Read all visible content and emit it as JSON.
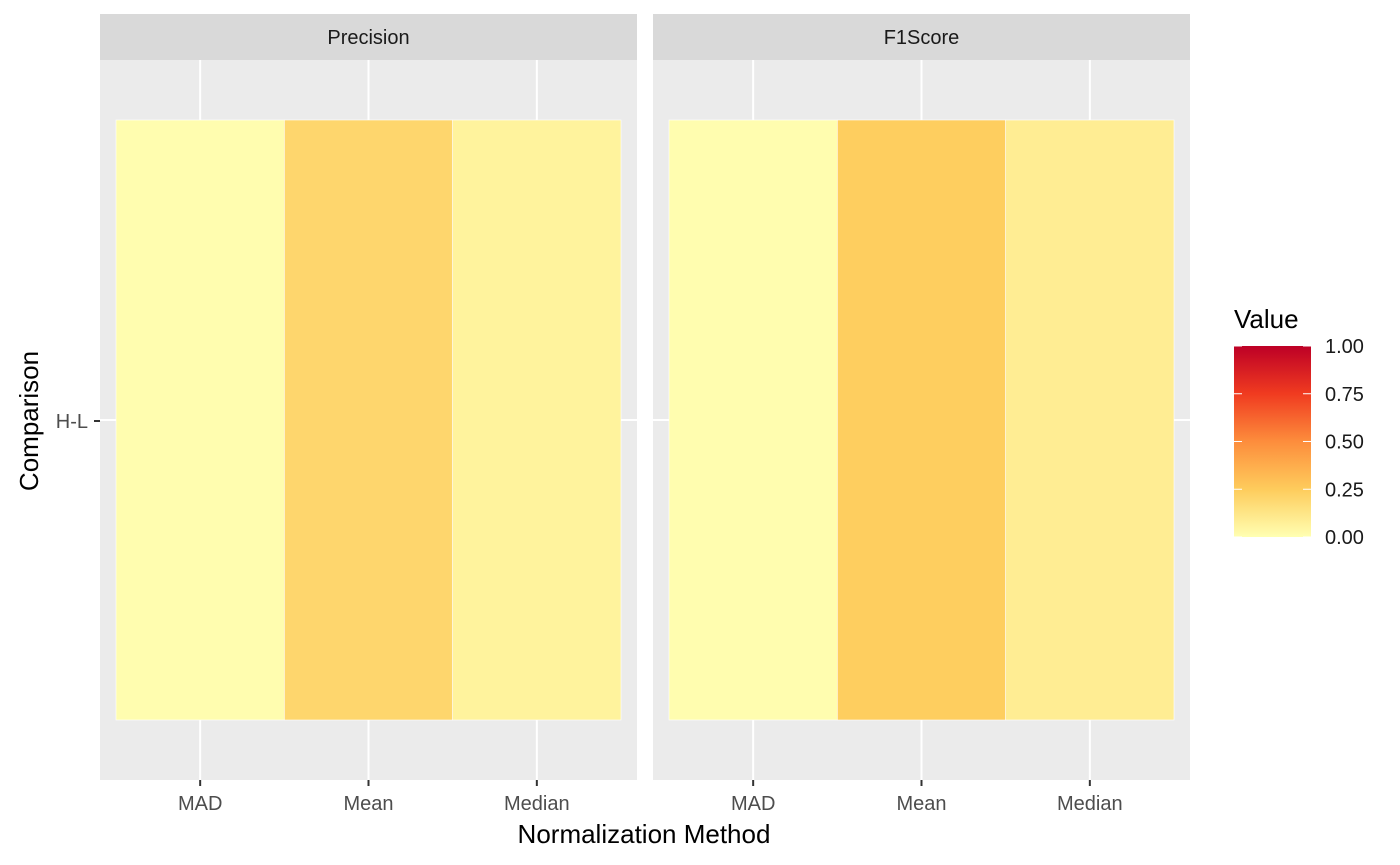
{
  "chart_data": {
    "type": "heatmap",
    "xlabel": "Normalization Method",
    "ylabel": "Comparison",
    "x_categories": [
      "MAD",
      "Mean",
      "Median"
    ],
    "y_categories": [
      "H-L"
    ],
    "facets": [
      {
        "name": "Precision",
        "cells": [
          {
            "x": "MAD",
            "y": "H-L",
            "value": 0.01
          },
          {
            "x": "Mean",
            "y": "H-L",
            "value": 0.2
          },
          {
            "x": "Median",
            "y": "H-L",
            "value": 0.06
          }
        ]
      },
      {
        "name": "F1Score",
        "cells": [
          {
            "x": "MAD",
            "y": "H-L",
            "value": 0.01
          },
          {
            "x": "Mean",
            "y": "H-L",
            "value": 0.24
          },
          {
            "x": "Median",
            "y": "H-L",
            "value": 0.09
          }
        ]
      }
    ],
    "legend": {
      "title": "Value",
      "breaks": [
        "0.00",
        "0.25",
        "0.50",
        "0.75",
        "1.00"
      ],
      "limits": [
        0,
        1
      ],
      "placement": "right"
    },
    "colorscale": {
      "stops": [
        {
          "value": 0.0,
          "color": "#FFFFB2"
        },
        {
          "value": 0.25,
          "color": "#FECC5C"
        },
        {
          "value": 0.5,
          "color": "#FD8D3C"
        },
        {
          "value": 0.75,
          "color": "#F03B20"
        },
        {
          "value": 1.0,
          "color": "#BD0026"
        }
      ]
    },
    "grid": true
  }
}
